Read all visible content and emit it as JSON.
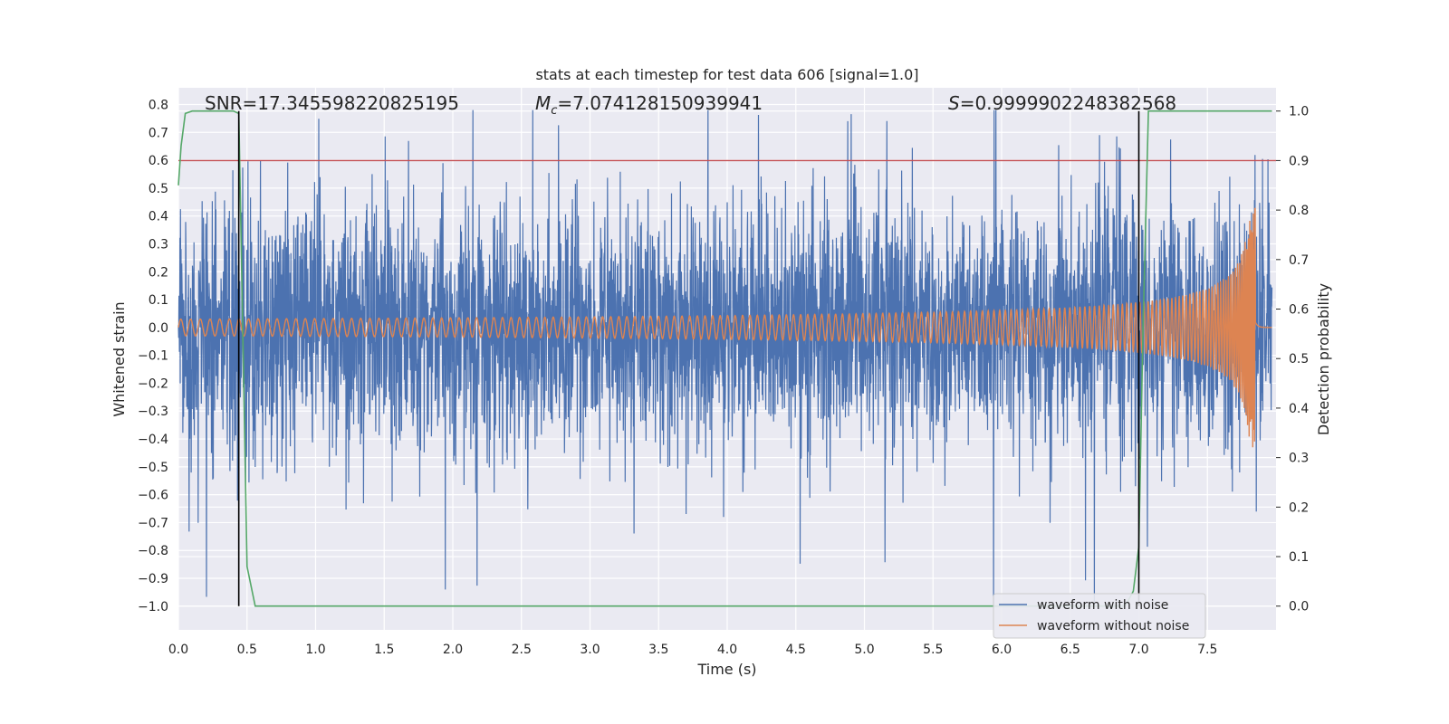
{
  "chart_data": {
    "type": "line",
    "title": "stats at each timestep for test data 606 [signal=1.0]",
    "xlabel": "Time (s)",
    "ylabel": "Whitened strain",
    "y2label": "Detection probability",
    "xlim": [
      0.0,
      8.0
    ],
    "ylim": [
      -1.085,
      0.86
    ],
    "y2lim": [
      -0.048,
      1.047
    ],
    "xticks": [
      "0.0",
      "0.5",
      "1.0",
      "1.5",
      "2.0",
      "2.5",
      "3.0",
      "3.5",
      "4.0",
      "4.5",
      "5.0",
      "5.5",
      "6.0",
      "6.5",
      "7.0",
      "7.5"
    ],
    "yticks": [
      "0.8",
      "0.7",
      "0.6",
      "0.5",
      "0.4",
      "0.3",
      "0.2",
      "0.1",
      "0.0",
      "−0.1",
      "−0.2",
      "−0.3",
      "−0.4",
      "−0.5",
      "−0.6",
      "−0.7",
      "−0.8",
      "−0.9",
      "−1.0"
    ],
    "y2ticks": [
      "1.0",
      "0.9",
      "0.8",
      "0.7",
      "0.6",
      "0.5",
      "0.4",
      "0.3",
      "0.2",
      "0.1",
      "0.0"
    ],
    "annotations": {
      "snr": "SNR=17.345598220825195",
      "mc_symbol": "M",
      "mc_sub": "c",
      "mc_value": "=7.074128150939941",
      "s_symbol": "S",
      "s_value": "=0.9999902248382568"
    },
    "colors": {
      "noise": "#4c72b0",
      "clean": "#dd8452",
      "prob": "#55a868",
      "threshold": "#c44e52",
      "marker": "#000000",
      "background": "#eaeaf2",
      "grid": "#ffffff"
    },
    "threshold_y2": 0.9,
    "markers_x": [
      0.44,
      7.0
    ],
    "series": [
      {
        "name": "waveform with noise",
        "kind": "noise",
        "envelope": 0.22,
        "peak_max": 0.78,
        "peak_min": -1.0
      },
      {
        "name": "waveform without noise",
        "kind": "chirp",
        "start_amplitude": 0.03,
        "peak_amplitude": 0.45,
        "merger_time": 7.85,
        "end_time": 7.97
      },
      {
        "name": "Detection probability",
        "kind": "probability",
        "axis": "right",
        "x": [
          0.0,
          0.02,
          0.05,
          0.1,
          0.15,
          0.2,
          0.3,
          0.4,
          0.44,
          0.5,
          0.56,
          1.0,
          2.0,
          3.0,
          4.0,
          5.0,
          6.0,
          6.9,
          6.96,
          7.0,
          7.03,
          7.07,
          7.2,
          7.5,
          7.97
        ],
        "y": [
          0.85,
          0.93,
          0.995,
          1.0,
          1.0,
          1.0,
          1.0,
          1.0,
          0.995,
          0.08,
          0.0,
          0.0,
          0.0,
          0.0,
          0.0,
          0.0,
          0.0,
          0.0,
          0.03,
          0.12,
          0.55,
          1.0,
          1.0,
          1.0,
          1.0
        ]
      }
    ],
    "legend": {
      "position": "lower-right",
      "entries": [
        "waveform with noise",
        "waveform without noise"
      ]
    }
  }
}
